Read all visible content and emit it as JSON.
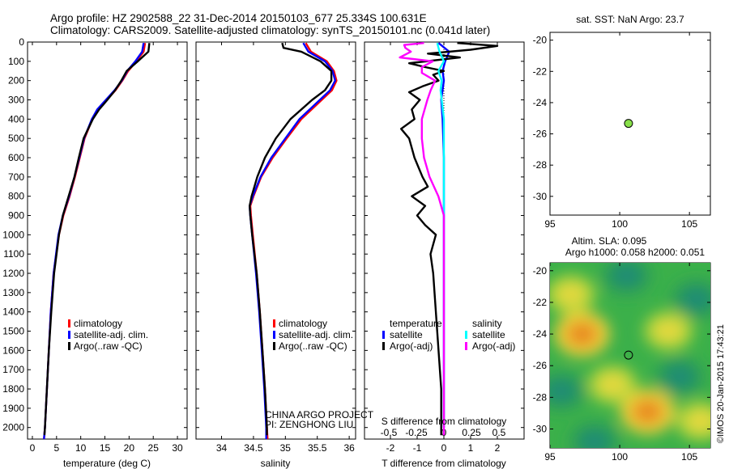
{
  "header": {
    "title_line1": "Argo profile: HZ 2902588_22 31-Dec-2014 20150103_677 25.334S 100.631E",
    "title_line2": "Climatology: CARS2009. Satellite-adjusted climatology: synTS_20150101.nc (0.041d later)"
  },
  "credits": {
    "project": "CHINA ARGO PROJECT",
    "pi": "PI: ZENGHONG LIU",
    "watermark": "©IMOS 20-Jan-2015 17:43:21"
  },
  "colors": {
    "climatology": "#ff0000",
    "satellite": "#0000ff",
    "argo": "#000000",
    "sal_satellite": "#00ffff",
    "sal_argo": "#ff00ff",
    "dot": "#88e04a"
  },
  "chart_data": [
    {
      "type": "line",
      "id": "temperature",
      "xlabel": "temperature (deg C)",
      "xlim": [
        -1,
        32
      ],
      "ylim": [
        2060,
        0
      ],
      "x_ticks": [
        0,
        5,
        10,
        15,
        20,
        25,
        30
      ],
      "y_ticks": [
        0,
        100,
        200,
        300,
        400,
        500,
        600,
        700,
        800,
        900,
        1000,
        1100,
        1200,
        1300,
        1400,
        1500,
        1600,
        1700,
        1800,
        1900,
        2000
      ],
      "legend": [
        "climatology",
        "satellite-adj. clim.",
        "Argo(..raw -QC)"
      ],
      "series": [
        {
          "name": "climatology",
          "depth": [
            5,
            50,
            100,
            150,
            200,
            250,
            300,
            350,
            400,
            500,
            600,
            700,
            800,
            900,
            1000,
            1200,
            1400,
            1600,
            1800,
            2000,
            2060
          ],
          "values": [
            23.3,
            23.0,
            21.5,
            19.8,
            18.6,
            17.2,
            15.4,
            13.6,
            12.4,
            10.8,
            9.8,
            8.8,
            7.7,
            6.4,
            5.5,
            4.4,
            3.8,
            3.4,
            3.0,
            2.6,
            2.4
          ]
        },
        {
          "name": "satellite-adj. clim.",
          "depth": [
            5,
            50,
            100,
            150,
            200,
            250,
            300,
            350,
            400,
            500,
            600,
            700,
            800,
            900,
            1000,
            1200,
            1400,
            1600,
            1800,
            2000,
            2060
          ],
          "values": [
            23.0,
            22.7,
            21.3,
            19.6,
            18.5,
            17.0,
            15.2,
            13.4,
            12.3,
            10.7,
            9.7,
            8.7,
            7.6,
            6.3,
            5.4,
            4.4,
            3.8,
            3.4,
            3.0,
            2.6,
            2.4
          ]
        },
        {
          "name": "Argo(..raw -QC)",
          "depth": [
            5,
            50,
            100,
            150,
            200,
            250,
            300,
            350,
            400,
            500,
            600,
            700,
            800,
            900,
            1000,
            1200,
            1400,
            1600,
            1800,
            2000,
            2040
          ],
          "values": [
            24.2,
            24.0,
            21.8,
            19.5,
            18.4,
            17.1,
            15.5,
            13.8,
            12.5,
            10.6,
            9.6,
            8.7,
            7.5,
            6.3,
            5.5,
            4.5,
            3.9,
            3.4,
            3.0,
            2.6,
            2.5
          ]
        }
      ]
    },
    {
      "type": "line",
      "id": "salinity",
      "xlabel": "salinity",
      "xlim": [
        33.6,
        36.1
      ],
      "ylim": [
        2060,
        0
      ],
      "x_ticks": [
        34,
        34.5,
        35,
        35.5,
        36
      ],
      "legend": [
        "climatology",
        "satellite-adj. clim.",
        "Argo(..raw -QC)"
      ],
      "series": [
        {
          "name": "climatology",
          "depth": [
            5,
            50,
            100,
            150,
            200,
            250,
            300,
            400,
            500,
            600,
            700,
            800,
            850,
            900,
            1000,
            1200,
            1400,
            1600,
            1800,
            2000,
            2060
          ],
          "values": [
            35.32,
            35.4,
            35.65,
            35.76,
            35.8,
            35.73,
            35.57,
            35.25,
            35.02,
            34.8,
            34.62,
            34.5,
            34.45,
            34.46,
            34.49,
            34.55,
            34.6,
            34.64,
            34.68,
            34.71,
            34.72
          ]
        },
        {
          "name": "satellite-adj. clim.",
          "depth": [
            5,
            50,
            100,
            150,
            200,
            250,
            300,
            400,
            500,
            600,
            700,
            800,
            850,
            900,
            1000,
            1200,
            1400,
            1600,
            1800,
            2000,
            2060
          ],
          "values": [
            35.28,
            35.36,
            35.62,
            35.74,
            35.78,
            35.7,
            35.54,
            35.22,
            35.0,
            34.78,
            34.61,
            34.49,
            34.44,
            34.45,
            34.48,
            34.54,
            34.59,
            34.63,
            34.67,
            34.7,
            34.7
          ]
        },
        {
          "name": "Argo(..raw -QC)",
          "depth": [
            5,
            30,
            50,
            100,
            150,
            200,
            250,
            300,
            400,
            500,
            600,
            700,
            800,
            850,
            900,
            1000,
            1200,
            1400,
            1600,
            1800,
            2000,
            2040
          ],
          "values": [
            34.95,
            34.97,
            35.25,
            35.55,
            35.72,
            35.72,
            35.62,
            35.42,
            35.08,
            34.85,
            34.68,
            34.56,
            34.47,
            34.44,
            34.45,
            34.48,
            34.55,
            34.6,
            34.64,
            34.68,
            34.71,
            34.71
          ]
        }
      ]
    },
    {
      "type": "line",
      "id": "differences",
      "xlabel": "T difference from climatology",
      "xlabel_top": "S difference from climatology",
      "t_xlim": [
        -2.6,
        3.0
      ],
      "t_ticks": [
        "-2",
        "-1",
        "0",
        "1",
        "2"
      ],
      "s_ticks": [
        "-0.5",
        "-0.25",
        "0",
        "0.25",
        "0.5"
      ],
      "legend_temperature_title": "temperature",
      "legend_salinity_title": "salinity",
      "legend_temperature": [
        "satellite",
        "Argo(-adj)"
      ],
      "legend_salinity": [
        "satellite",
        "Argo(-adj)"
      ],
      "series": [
        {
          "name": "T satellite",
          "depth": [
            5,
            50,
            100,
            150,
            200,
            300,
            400,
            600,
            800,
            1000,
            1400,
            2000
          ],
          "values": [
            -0.2,
            0.2,
            0.05,
            -0.05,
            0.0,
            -0.1,
            -0.05,
            0.0,
            0.0,
            0.0,
            0.0,
            0.0
          ]
        },
        {
          "name": "T Argo(-adj)",
          "depth": [
            5,
            20,
            40,
            60,
            80,
            110,
            130,
            150,
            170,
            200,
            230,
            260,
            300,
            350,
            400,
            450,
            500,
            600,
            700,
            750,
            800,
            850,
            900,
            950,
            1000,
            1100,
            1200,
            1400,
            1600,
            1800,
            2000,
            2040
          ],
          "values": [
            0.5,
            2.0,
            1.0,
            -0.6,
            0.6,
            -1.3,
            -0.7,
            0.0,
            -0.4,
            -0.2,
            -0.8,
            -1.3,
            -0.9,
            -1.2,
            -1.1,
            -1.6,
            -1.3,
            -1.1,
            -0.8,
            -0.6,
            -1.2,
            -0.7,
            -1.0,
            -0.7,
            -0.3,
            -0.5,
            -0.4,
            -0.3,
            -0.2,
            -0.1,
            -0.1,
            -0.1
          ]
        },
        {
          "name": "S satellite",
          "depth": [
            5,
            50,
            100,
            150,
            200,
            250,
            300,
            400,
            600,
            800,
            1000,
            1400,
            2000
          ],
          "values": [
            -0.06,
            -0.04,
            0.0,
            -0.05,
            -0.02,
            -0.03,
            -0.02,
            0.0,
            0.0,
            0.0,
            0.0,
            0.0,
            0.0
          ]
        },
        {
          "name": "S Argo(-adj)",
          "depth": [
            5,
            15,
            30,
            50,
            80,
            100,
            130,
            160,
            200,
            250,
            300,
            400,
            500,
            600,
            700,
            800,
            900,
            1000,
            1200,
            1400,
            1600,
            1800,
            2000,
            2040
          ],
          "values": [
            -0.18,
            -0.36,
            -0.35,
            -0.3,
            -0.4,
            -0.1,
            -0.2,
            -0.2,
            -0.08,
            -0.12,
            -0.15,
            -0.2,
            -0.2,
            -0.18,
            -0.13,
            -0.05,
            0.0,
            0.0,
            0.0,
            0.0,
            0.0,
            0.0,
            0.0,
            0.0
          ]
        }
      ]
    },
    {
      "type": "scatter",
      "id": "sst_map",
      "title": "sat. SST: NaN Argo: 23.7",
      "xlim": [
        95,
        106.5
      ],
      "ylim": [
        -31.2,
        -19.5
      ],
      "x_ticks": [
        95,
        100,
        105
      ],
      "y_ticks": [
        -20,
        -22,
        -24,
        -26,
        -28,
        -30
      ],
      "point": {
        "lon": 100.63,
        "lat": -25.33
      }
    },
    {
      "type": "heatmap",
      "id": "sla_map",
      "title_line1": "Altim. SLA: 0.095",
      "title_line2": "Argo h1000: 0.058 h2000: 0.051",
      "xlim": [
        95,
        106.5
      ],
      "ylim": [
        -31.2,
        -19.5
      ],
      "x_ticks": [
        95,
        100,
        105
      ],
      "y_ticks": [
        -20,
        -22,
        -24,
        -26,
        -28,
        -30
      ],
      "point": {
        "lon": 100.63,
        "lat": -25.33
      },
      "blobs": [
        {
          "lon": 97.3,
          "lat": -24.0,
          "level": "high"
        },
        {
          "lon": 102.0,
          "lat": -28.9,
          "level": "high"
        },
        {
          "lon": 103.5,
          "lat": -23.8,
          "level": "mid"
        },
        {
          "lon": 96.5,
          "lat": -21.5,
          "level": "mid"
        },
        {
          "lon": 99.5,
          "lat": -27.2,
          "level": "mid"
        },
        {
          "lon": 105.8,
          "lat": -29.5,
          "level": "mid"
        },
        {
          "lon": 105.5,
          "lat": -21.8,
          "level": "low"
        },
        {
          "lon": 100.5,
          "lat": -20.3,
          "level": "low"
        },
        {
          "lon": 95.8,
          "lat": -27.6,
          "level": "low"
        },
        {
          "lon": 98.2,
          "lat": -30.8,
          "level": "low"
        },
        {
          "lon": 104.3,
          "lat": -26.7,
          "level": "low"
        }
      ]
    }
  ]
}
